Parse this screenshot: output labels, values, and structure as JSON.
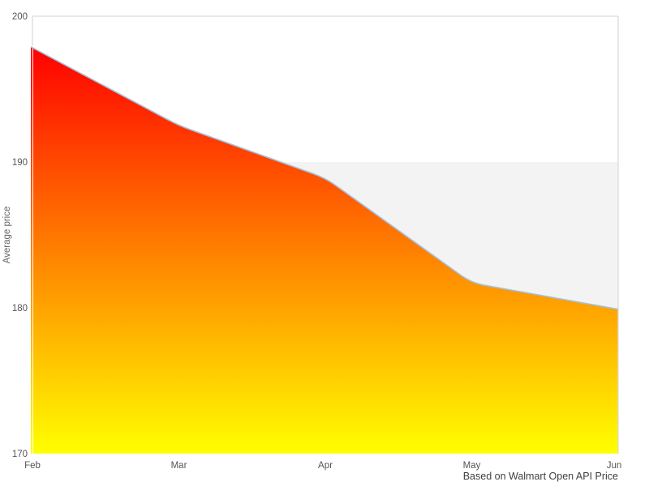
{
  "chart_data": {
    "type": "area",
    "title": "",
    "x": [
      "Feb",
      "Mar",
      "Apr",
      "May",
      "Jun"
    ],
    "series": [
      {
        "name": "Average price",
        "values": [
          197.9,
          192.5,
          188.9,
          181.7,
          179.9
        ]
      }
    ],
    "xlabel": "",
    "ylabel": "Average price",
    "ylim": [
      170,
      200
    ],
    "yticks": [
      170,
      180,
      190,
      200
    ],
    "xticks": [
      "Feb",
      "Mar",
      "Apr",
      "May",
      "Jun"
    ],
    "grid": false,
    "legend": "none",
    "caption": "Based on Walmart Open API Price",
    "band": {
      "from": 170,
      "to": 190,
      "color": "#f3f3f3"
    },
    "colors": {
      "area_gradient_top": "#ff0000",
      "area_gradient_bottom": "#ffff00",
      "line": "#a5bfd9",
      "plot_border": "#dcdcdc",
      "band": "#f3f3f3",
      "tick_text": "#555555",
      "axis_label_text": "#666666",
      "caption_text": "#3f3f3f",
      "plot_background": "#ffffff"
    }
  }
}
